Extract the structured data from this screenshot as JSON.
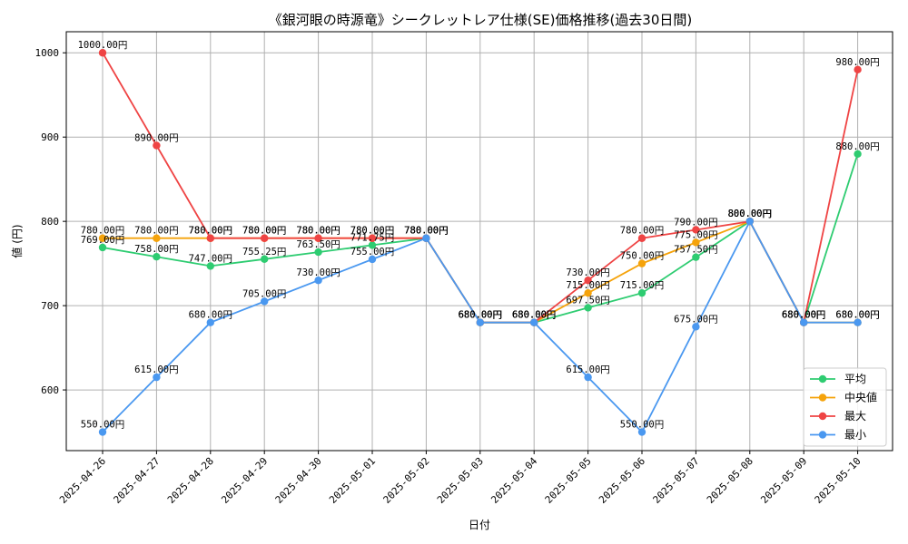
{
  "chart_data": {
    "type": "line",
    "title": "《銀河眼の時源竜》シークレットレア仕様(SE)価格推移(過去30日間)",
    "xlabel": "日付",
    "ylabel": "値 (円)",
    "ylim": [
      528,
      1025
    ],
    "yticks": [
      600,
      700,
      800,
      900,
      1000
    ],
    "grid": true,
    "legend_position": "lower-right",
    "value_suffix": "円",
    "categories": [
      "2025-04-26",
      "2025-04-27",
      "2025-04-28",
      "2025-04-29",
      "2025-04-30",
      "2025-05-01",
      "2025-05-02",
      "2025-05-03",
      "2025-05-04",
      "2025-05-05",
      "2025-05-06",
      "2025-05-07",
      "2025-05-08",
      "2025-05-09",
      "2025-05-10"
    ],
    "series": [
      {
        "name": "平均",
        "color": "#2ecc71",
        "values": [
          769.0,
          758.0,
          747.0,
          755.25,
          763.5,
          771.75,
          780.0,
          680.0,
          680.0,
          697.5,
          715.0,
          757.5,
          800.0,
          680.0,
          880.0
        ]
      },
      {
        "name": "中央値",
        "color": "#f5a30b",
        "values": [
          780.0,
          780.0,
          780.0,
          780.0,
          780.0,
          780.0,
          780.0,
          680.0,
          680.0,
          715.0,
          750.0,
          775.0,
          800.0,
          680.0,
          680.0
        ]
      },
      {
        "name": "最大",
        "color": "#ef4444",
        "values": [
          1000.0,
          890.0,
          780.0,
          780.0,
          780.0,
          780.0,
          780.0,
          680.0,
          680.0,
          730.0,
          780.0,
          790.0,
          800.0,
          680.0,
          980.0
        ]
      },
      {
        "name": "最小",
        "color": "#4a98f0",
        "values": [
          550.0,
          615.0,
          680.0,
          705.0,
          730.0,
          755.0,
          780.0,
          680.0,
          680.0,
          615.0,
          550.0,
          675.0,
          800.0,
          680.0,
          680.0
        ]
      }
    ]
  }
}
